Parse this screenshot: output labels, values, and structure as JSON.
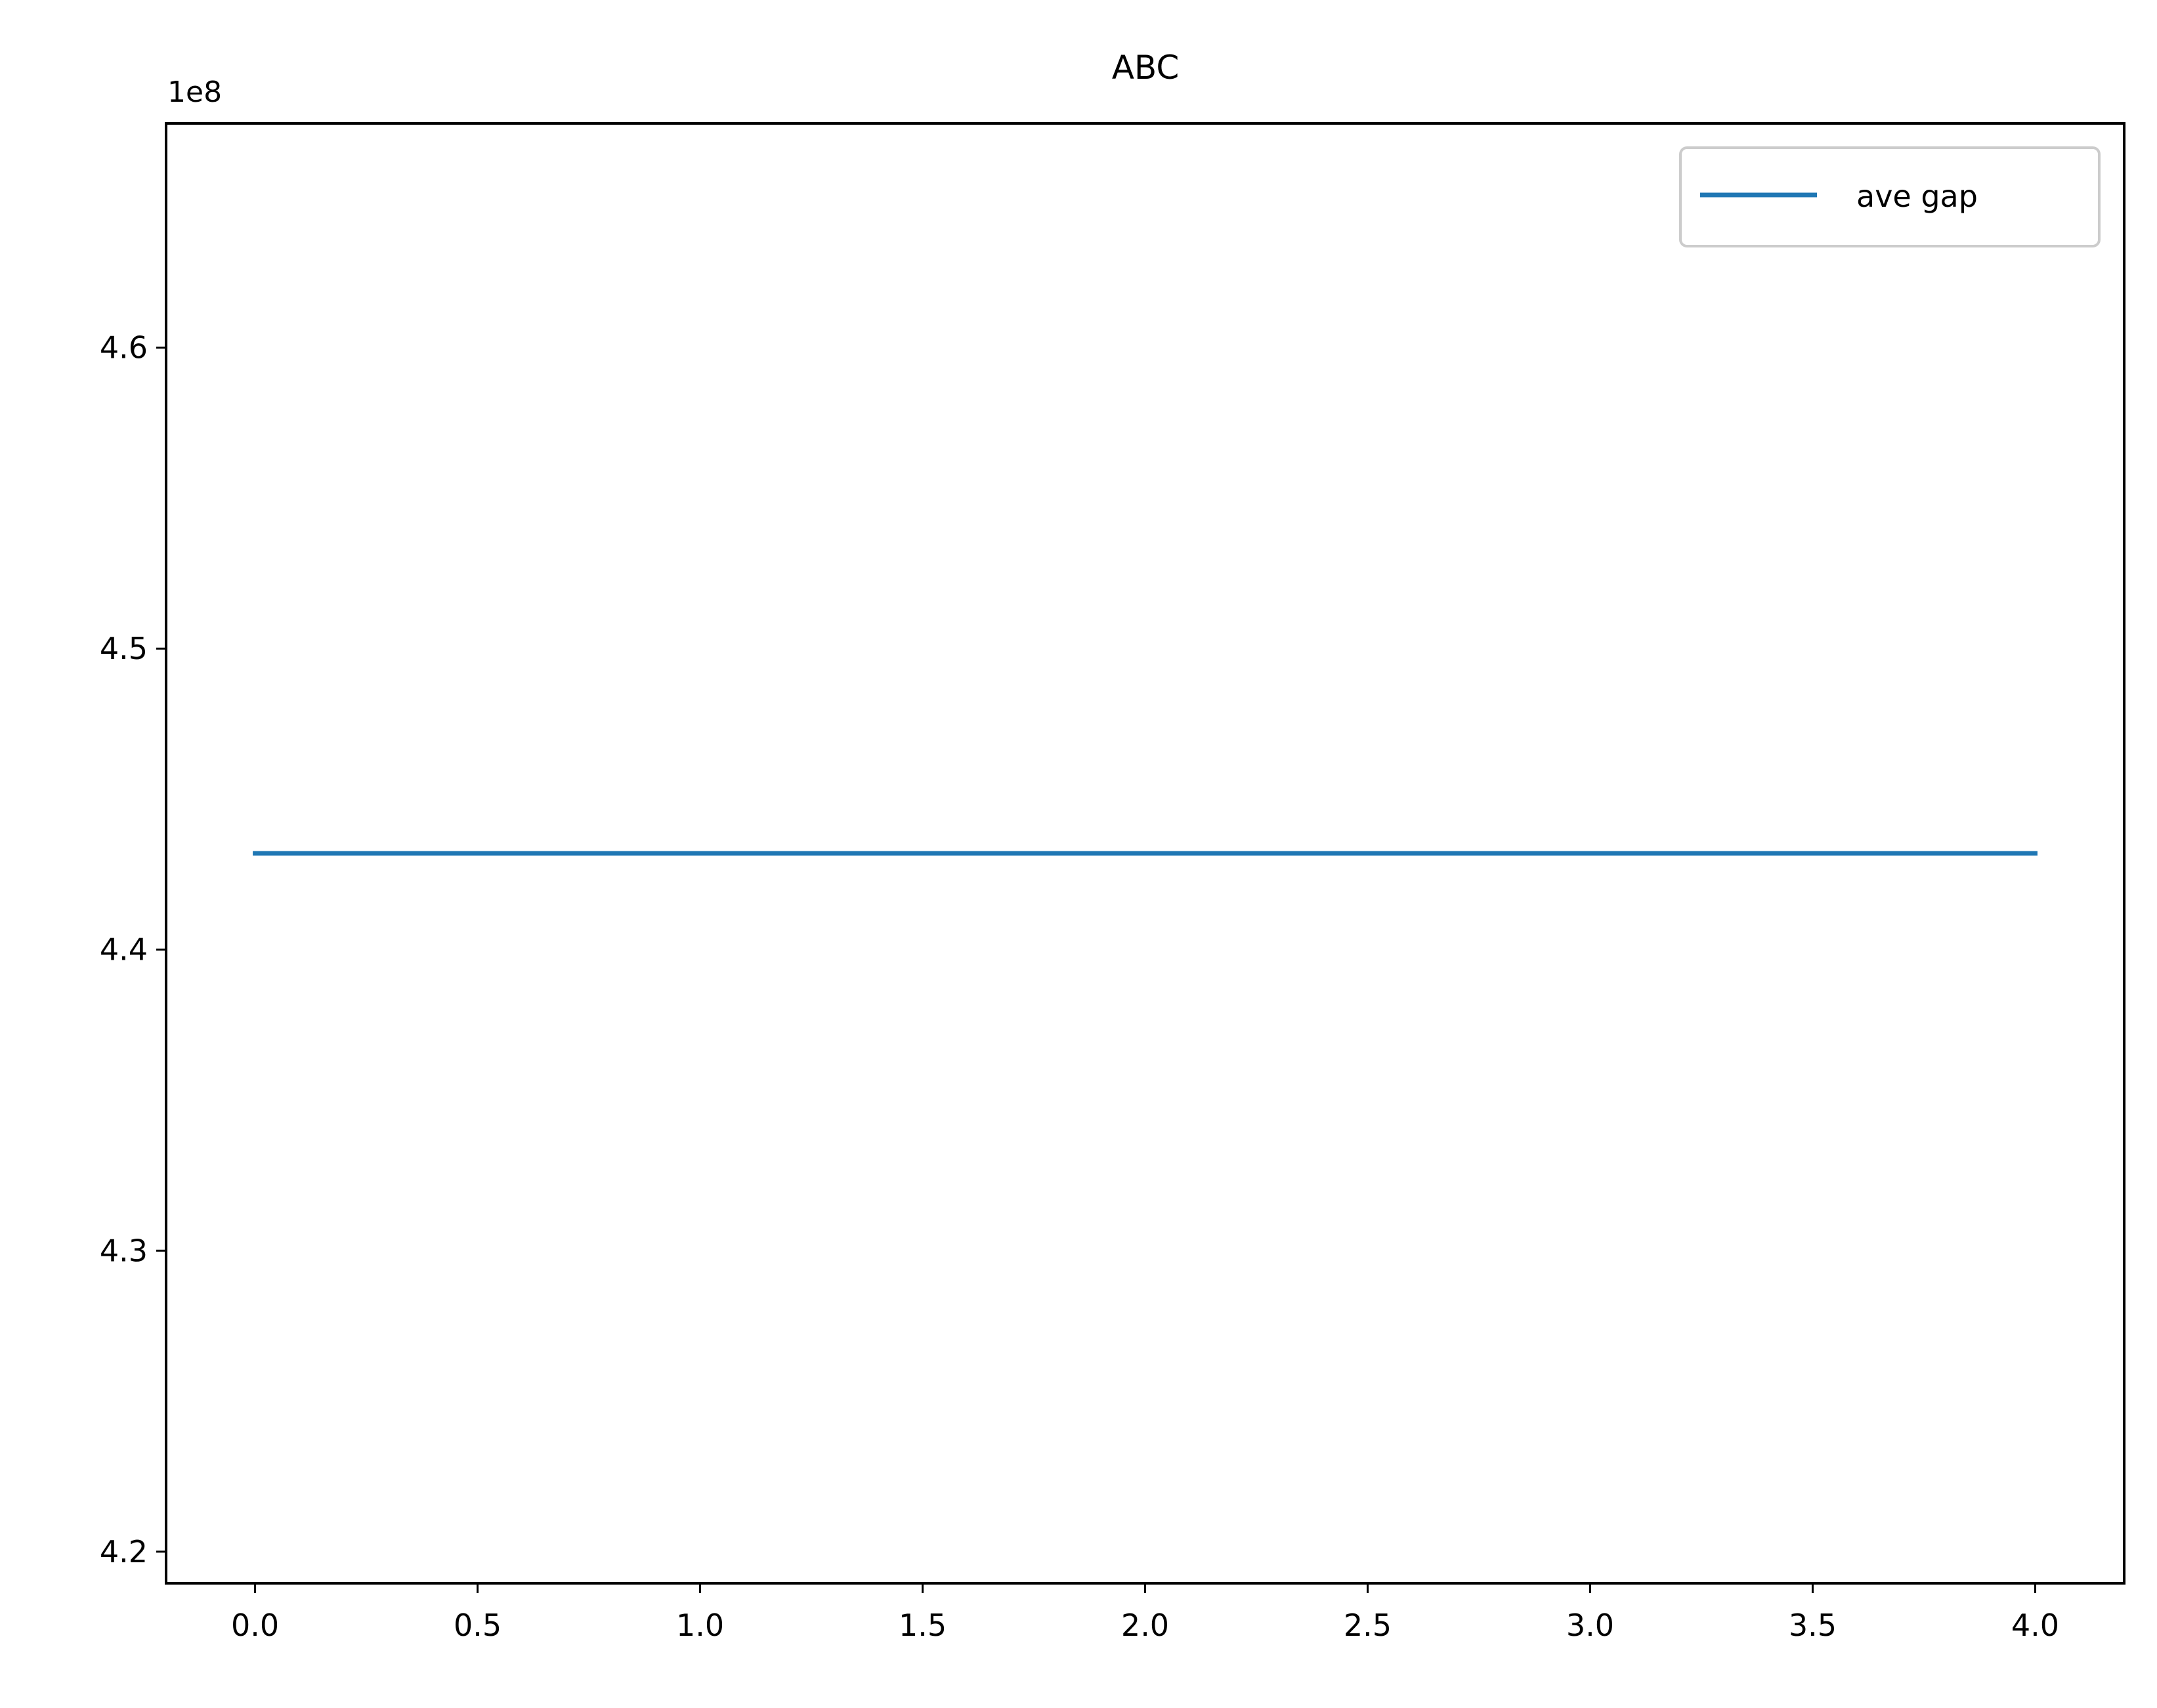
{
  "chart_data": {
    "type": "line",
    "title": "ABC",
    "xlabel": "",
    "ylabel": "",
    "y_offset_label": "1e8",
    "xlim": [
      -0.2,
      4.2
    ],
    "ylim": [
      4.1895,
      4.6745
    ],
    "x_ticks": [
      0.0,
      0.5,
      1.0,
      1.5,
      2.0,
      2.5,
      3.0,
      3.5,
      4.0
    ],
    "x_tick_labels": [
      "0.0",
      "0.5",
      "1.0",
      "1.5",
      "2.0",
      "2.5",
      "3.0",
      "3.5",
      "4.0"
    ],
    "y_ticks": [
      4.2,
      4.3,
      4.4,
      4.5,
      4.6
    ],
    "y_tick_labels": [
      "4.2",
      "4.3",
      "4.4",
      "4.5",
      "4.6"
    ],
    "grid": false,
    "legend_position": "top-right",
    "series": [
      {
        "name": "ave gap",
        "color": "#1f77b4",
        "x": [
          0,
          1,
          2,
          3,
          4
        ],
        "y": [
          4.432,
          4.432,
          4.432,
          4.432,
          4.432
        ]
      }
    ]
  }
}
